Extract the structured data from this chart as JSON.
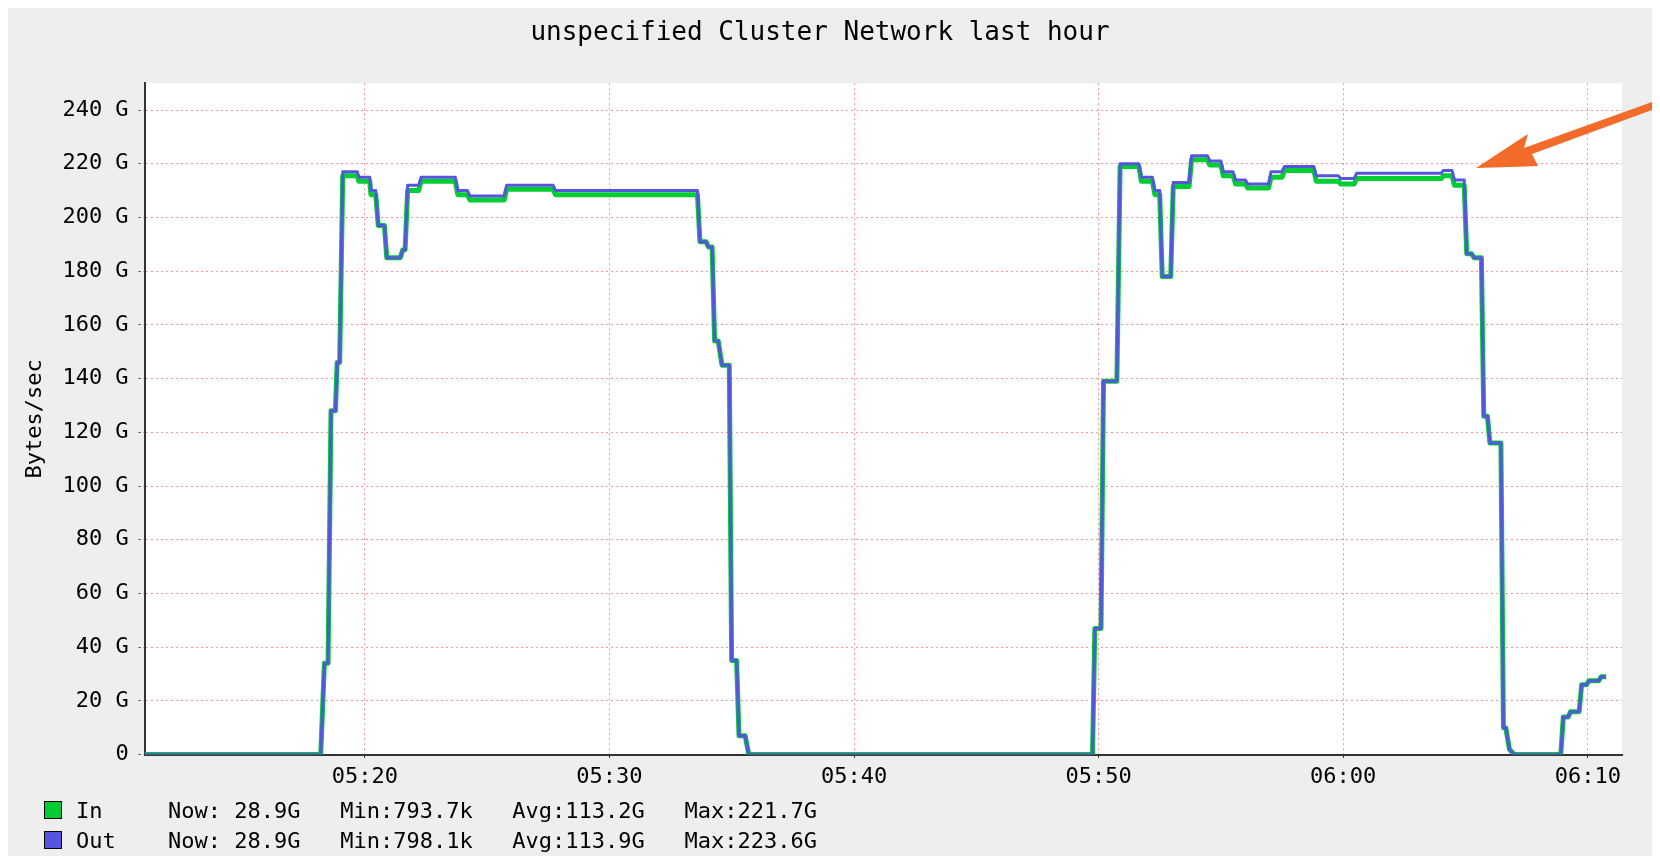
{
  "chart_data": {
    "type": "line",
    "title": "unspecified Cluster Network last hour",
    "ylabel": "Bytes/sec",
    "x": [
      5.1833,
      5.3033,
      5.3058,
      5.3083,
      5.3103,
      5.3133,
      5.3145,
      5.3162,
      5.3183,
      5.3283,
      5.3292,
      5.3367,
      5.3375,
      5.3408,
      5.3425,
      5.3467,
      5.3483,
      5.3575,
      5.3592,
      5.3608,
      5.3625,
      5.37,
      5.3717,
      5.395,
      5.3967,
      5.4033,
      5.405,
      5.4283,
      5.43,
      5.4617,
      5.4633,
      5.56,
      5.5617,
      5.5658,
      5.5675,
      5.57,
      5.5717,
      5.5742,
      5.5767,
      5.5817,
      5.5833,
      5.5867,
      5.5883,
      5.5925,
      5.595,
      5.8292,
      5.8308,
      5.835,
      5.8367,
      5.8458,
      5.848,
      5.8608,
      5.8625,
      5.87,
      5.8717,
      5.875,
      5.8767,
      5.8825,
      5.8842,
      5.895,
      5.8967,
      5.9075,
      5.9092,
      5.9167,
      5.9183,
      5.925,
      5.9267,
      5.9333,
      5.935,
      5.9492,
      5.9508,
      5.9583,
      5.96,
      5.98,
      5.9817,
      5.9967,
      5.9983,
      6.0075,
      6.0092,
      6.0667,
      6.0683,
      6.0742,
      6.0758,
      6.0825,
      6.0842,
      6.0875,
      6.0892,
      6.0942,
      6.0958,
      6.0983,
      6.1,
      6.1075,
      6.1092,
      6.1108,
      6.1133,
      6.1167,
      6.1483,
      6.15,
      6.1533,
      6.155,
      6.1608,
      6.1625,
      6.1658,
      6.1675,
      6.1742,
      6.1758,
      6.1792
    ],
    "series": [
      {
        "name": "In",
        "color": "#00cc33",
        "values": [
          0,
          0,
          34,
          34,
          128,
          128,
          146,
          146,
          215.5,
          215.5,
          213.5,
          213.5,
          208.5,
          208.5,
          197,
          197,
          185,
          185,
          188,
          188,
          210,
          210,
          213.5,
          213.5,
          208.5,
          208.5,
          206.5,
          206.5,
          210.5,
          210.5,
          208.5,
          208.5,
          191,
          191,
          189,
          189,
          154,
          154,
          145,
          145,
          35,
          35,
          7,
          7,
          0,
          0,
          47,
          47,
          139,
          139,
          219,
          219,
          213.5,
          213.5,
          208.5,
          208.5,
          178,
          178,
          211.5,
          211.5,
          221.5,
          221.5,
          219.5,
          219.5,
          215.5,
          215.5,
          212.5,
          212.5,
          211,
          211,
          215,
          215,
          217.5,
          217.5,
          213.5,
          213.5,
          212.5,
          212.5,
          214.5,
          214.5,
          215.5,
          215.5,
          212,
          212,
          186.5,
          186.5,
          185,
          185,
          126,
          126,
          116,
          116,
          10,
          10,
          2,
          0,
          0,
          14,
          14,
          16,
          16,
          26,
          26,
          27.5,
          27.5,
          29,
          29
        ]
      },
      {
        "name": "Out",
        "color": "#5555dd",
        "values": [
          0,
          0,
          34,
          34,
          128,
          128,
          146,
          146,
          217,
          217,
          215,
          215,
          210,
          210,
          197,
          197,
          185,
          185,
          188,
          188,
          212,
          212,
          215,
          215,
          210,
          210,
          208,
          208,
          212,
          212,
          210,
          210,
          191,
          191,
          189,
          189,
          154,
          154,
          145,
          145,
          35,
          35,
          7,
          7,
          0,
          0,
          47,
          47,
          139,
          139,
          220,
          220,
          215,
          215,
          210,
          210,
          178,
          178,
          213,
          213,
          223,
          223,
          221,
          221,
          217,
          217,
          214,
          214,
          212.5,
          212.5,
          217,
          217,
          219,
          219,
          215.5,
          215.5,
          214.5,
          214.5,
          216.5,
          216.5,
          217.5,
          217.5,
          214,
          214,
          186.5,
          186.5,
          185,
          185,
          126,
          126,
          116,
          116,
          10,
          10,
          2,
          0,
          0,
          14,
          14,
          16,
          16,
          26,
          26,
          27.5,
          27.5,
          29,
          29
        ]
      }
    ],
    "xlim": [
      5.1833,
      6.19
    ],
    "xticks": [
      {
        "value": 5.3333,
        "label": "05:20"
      },
      {
        "value": 5.5,
        "label": "05:30"
      },
      {
        "value": 5.6667,
        "label": "05:40"
      },
      {
        "value": 5.8333,
        "label": "05:50"
      },
      {
        "value": 6,
        "label": "06:00"
      },
      {
        "value": 6.1667,
        "label": "06:10"
      }
    ],
    "ylim": [
      0,
      250
    ],
    "yticks": [
      0,
      {
        "value": 20,
        "label": "20 G"
      },
      {
        "value": 40,
        "label": "40 G"
      },
      {
        "value": 60,
        "label": "60 G"
      },
      {
        "value": 80,
        "label": "80 G"
      },
      {
        "value": 100,
        "label": "100 G"
      },
      {
        "value": 120,
        "label": "120 G"
      },
      {
        "value": 140,
        "label": "140 G"
      },
      {
        "value": 160,
        "label": "160 G"
      },
      {
        "value": 180,
        "label": "180 G"
      },
      {
        "value": 200,
        "label": "200 G"
      },
      {
        "value": 220,
        "label": "220 G"
      },
      {
        "value": 240,
        "label": "240 G"
      }
    ],
    "grid": true,
    "legend": "bottom",
    "annotations": [
      "Now: 28.9G   Min:793.7k   Avg:113.2G   Max:221.7G",
      "Now: 28.9G   Min:798.1k   Avg:113.9G   Max:223.6G"
    ]
  }
}
